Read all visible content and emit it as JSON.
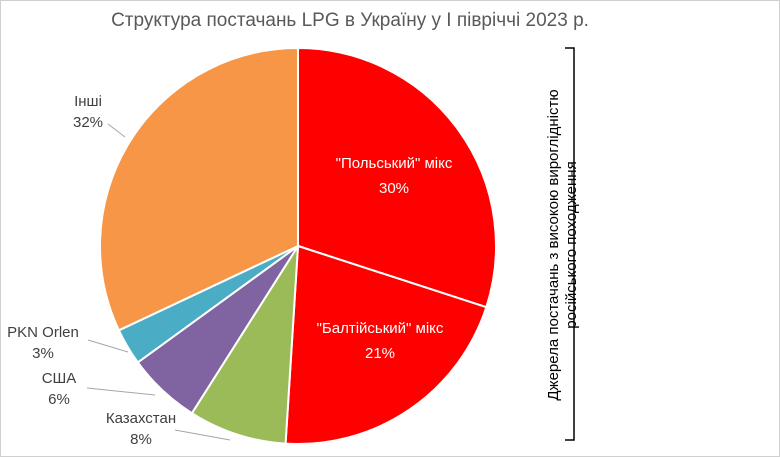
{
  "chart_data": {
    "type": "pie",
    "title": "Структура постачань LPG в Україну у І півріччі 2023 р.",
    "slices": [
      {
        "name": "\"Польський\" мікс",
        "value": 30,
        "label_pct": "30%",
        "color": "#ff0000",
        "label_inside": true
      },
      {
        "name": "\"Балтійський\" мікс",
        "value": 21,
        "label_pct": "21%",
        "color": "#ff0000",
        "label_inside": true
      },
      {
        "name": "Казахстан",
        "value": 8,
        "label_pct": "8%",
        "color": "#9bbb59",
        "label_inside": false
      },
      {
        "name": "США",
        "value": 6,
        "label_pct": "6%",
        "color": "#8064a2",
        "label_inside": false
      },
      {
        "name": "PKN Orlen",
        "value": 3,
        "label_pct": "3%",
        "color": "#4bacc6",
        "label_inside": false
      },
      {
        "name": "Інші",
        "value": 32,
        "label_pct": "32%",
        "color": "#f79646",
        "label_inside": false
      }
    ],
    "annotation": {
      "line1": "Джерела постачань з високою вироглідністю",
      "line2": "російського походження"
    }
  }
}
